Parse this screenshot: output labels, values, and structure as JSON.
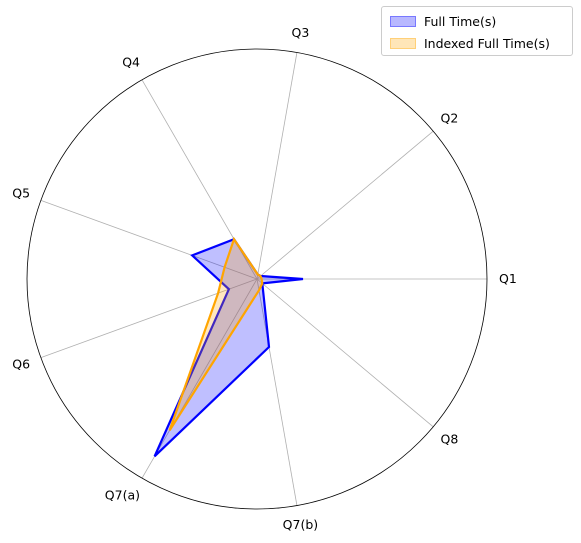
{
  "chart_data": {
    "type": "radar",
    "categories": [
      "Q1",
      "Q2",
      "Q3",
      "Q4",
      "Q5",
      "Q6",
      "Q7(a)",
      "Q7(b)",
      "Q8"
    ],
    "rmax": 1.0,
    "grid": true,
    "legend_position": "top-right",
    "series": [
      {
        "name": "Full Time(s)",
        "values": [
          0.2,
          0.02,
          0.02,
          0.2,
          0.3,
          0.13,
          0.89,
          0.3,
          0.03
        ],
        "line_color": "#0000ff",
        "fill_color": "#0000ff",
        "fill_opacity": 0.25
      },
      {
        "name": "Indexed Full Time(s)",
        "values": [
          0.02,
          0.02,
          0.02,
          0.2,
          0.15,
          0.18,
          0.76,
          0.05,
          0.03
        ],
        "line_color": "#ffa500",
        "fill_color": "#ffa500",
        "fill_opacity": 0.25
      }
    ]
  }
}
